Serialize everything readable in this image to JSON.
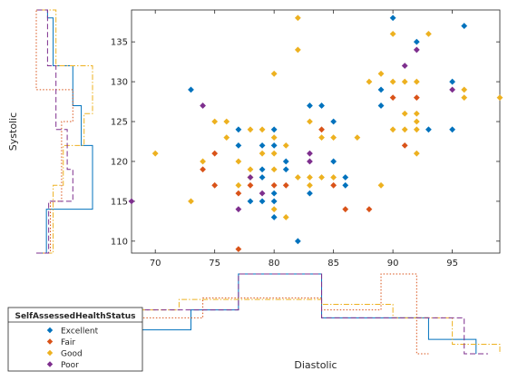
{
  "chart_data": {
    "type": "scatter",
    "title": "",
    "xlabel": "Diastolic",
    "ylabel": "Systolic",
    "xlim": [
      68,
      99
    ],
    "ylim": [
      108.5,
      139
    ],
    "x_ticks": [
      70,
      75,
      80,
      85,
      90,
      95
    ],
    "y_ticks": [
      110,
      115,
      120,
      125,
      130,
      135
    ],
    "legend_title": "SelfAssessedHealthStatus",
    "legend_position": "bottom-left",
    "series": [
      {
        "name": "Excellent",
        "color": "#0072BD",
        "marker": "diamond",
        "line_style": "solid",
        "points": [
          [
            73,
            129
          ],
          [
            77,
            124
          ],
          [
            77,
            122
          ],
          [
            78,
            115
          ],
          [
            79,
            119
          ],
          [
            79,
            118
          ],
          [
            79,
            122
          ],
          [
            79,
            115
          ],
          [
            80,
            124
          ],
          [
            80,
            122
          ],
          [
            80,
            116
          ],
          [
            80,
            115
          ],
          [
            80,
            113
          ],
          [
            81,
            120
          ],
          [
            81,
            119
          ],
          [
            82,
            110
          ],
          [
            83,
            116
          ],
          [
            83,
            127
          ],
          [
            84,
            127
          ],
          [
            85,
            125
          ],
          [
            85,
            120
          ],
          [
            86,
            118
          ],
          [
            86,
            117
          ],
          [
            89,
            129
          ],
          [
            89,
            127
          ],
          [
            90,
            138
          ],
          [
            92,
            135
          ],
          [
            93,
            124
          ],
          [
            95,
            130
          ],
          [
            95,
            124
          ],
          [
            96,
            137
          ]
        ]
      },
      {
        "name": "Fair",
        "color": "#D95319",
        "marker": "diamond",
        "line_style": "dotted",
        "points": [
          [
            74,
            119
          ],
          [
            75,
            121
          ],
          [
            75,
            117
          ],
          [
            77,
            116
          ],
          [
            77,
            109
          ],
          [
            78,
            117
          ],
          [
            80,
            117
          ],
          [
            81,
            117
          ],
          [
            84,
            124
          ],
          [
            85,
            117
          ],
          [
            86,
            114
          ],
          [
            88,
            114
          ],
          [
            90,
            128
          ],
          [
            91,
            122
          ],
          [
            92,
            128
          ]
        ]
      },
      {
        "name": "Good",
        "color": "#EDB120",
        "marker": "diamond",
        "line_style": "dashdot",
        "points": [
          [
            70,
            121
          ],
          [
            73,
            115
          ],
          [
            74,
            120
          ],
          [
            75,
            125
          ],
          [
            76,
            125
          ],
          [
            76,
            123
          ],
          [
            77,
            120
          ],
          [
            77,
            117
          ],
          [
            78,
            119
          ],
          [
            78,
            118
          ],
          [
            78,
            124
          ],
          [
            79,
            121
          ],
          [
            79,
            124
          ],
          [
            80,
            131
          ],
          [
            80,
            123
          ],
          [
            80,
            121
          ],
          [
            80,
            119
          ],
          [
            80,
            114
          ],
          [
            81,
            122
          ],
          [
            81,
            113
          ],
          [
            82,
            134
          ],
          [
            82,
            118
          ],
          [
            82,
            138
          ],
          [
            83,
            125
          ],
          [
            83,
            118
          ],
          [
            83,
            117
          ],
          [
            84,
            123
          ],
          [
            84,
            118
          ],
          [
            85,
            123
          ],
          [
            85,
            118
          ],
          [
            87,
            123
          ],
          [
            88,
            130
          ],
          [
            89,
            131
          ],
          [
            89,
            117
          ],
          [
            90,
            136
          ],
          [
            90,
            130
          ],
          [
            90,
            124
          ],
          [
            91,
            126
          ],
          [
            91,
            130
          ],
          [
            91,
            124
          ],
          [
            92,
            130
          ],
          [
            92,
            126
          ],
          [
            92,
            125
          ],
          [
            92,
            124
          ],
          [
            92,
            121
          ],
          [
            93,
            136
          ],
          [
            96,
            129
          ],
          [
            96,
            128
          ],
          [
            99,
            128
          ]
        ]
      },
      {
        "name": "Poor",
        "color": "#7E2F8E",
        "marker": "diamond",
        "line_style": "dashed",
        "points": [
          [
            68,
            115
          ],
          [
            74,
            127
          ],
          [
            77,
            114
          ],
          [
            78,
            118
          ],
          [
            79,
            116
          ],
          [
            83,
            121
          ],
          [
            83,
            120
          ],
          [
            91,
            132
          ],
          [
            92,
            134
          ],
          [
            95,
            129
          ]
        ]
      }
    ],
    "marginal_top_heights": {
      "Excellent": [
        [
          68,
          73,
          0.3
        ],
        [
          73,
          77,
          0.55
        ],
        [
          77,
          84,
          1.0
        ],
        [
          84,
          93,
          0.45
        ],
        [
          93,
          97,
          0.18
        ]
      ],
      "Fair": [
        [
          68,
          74,
          0.45
        ],
        [
          74,
          80,
          0.7
        ],
        [
          80,
          84,
          0.7
        ],
        [
          84,
          89,
          0.55
        ],
        [
          89,
          92,
          1.0
        ],
        [
          92,
          93,
          0
        ]
      ],
      "Good": [
        [
          68,
          72,
          0.55
        ],
        [
          72,
          78,
          0.68
        ],
        [
          78,
          84,
          0.68
        ],
        [
          84,
          90,
          0.62
        ],
        [
          90,
          95,
          0.45
        ],
        [
          95,
          99,
          0.12
        ]
      ],
      "Poor": [
        [
          68,
          72,
          0.55
        ],
        [
          72,
          77,
          0.55
        ],
        [
          77,
          84,
          1.0
        ],
        [
          84,
          89,
          0.45
        ],
        [
          89,
          96,
          0.45
        ],
        [
          96,
          98,
          0
        ]
      ]
    },
    "marginal_left_heights": {
      "Excellent": [
        [
          108.5,
          114,
          0.18
        ],
        [
          114,
          122,
          1.0
        ],
        [
          122,
          127,
          0.8
        ],
        [
          127,
          132,
          0.65
        ],
        [
          132,
          138,
          0.3
        ],
        [
          138,
          139,
          0.2
        ]
      ],
      "Fair": [
        [
          108.5,
          115,
          0.25
        ],
        [
          115,
          125,
          0.45
        ],
        [
          125,
          129,
          0.65
        ],
        [
          129,
          139,
          0
        ]
      ],
      "Good": [
        [
          108.5,
          117,
          0.3
        ],
        [
          117,
          122,
          0.48
        ],
        [
          122,
          126,
          0.85
        ],
        [
          126,
          132,
          1.0
        ],
        [
          132,
          139,
          0.35
        ]
      ],
      "Poor": [
        [
          108.5,
          115,
          0.22
        ],
        [
          115,
          119,
          0.65
        ],
        [
          119,
          124,
          0.55
        ],
        [
          124,
          132,
          0.35
        ],
        [
          132,
          139,
          0.2
        ]
      ]
    }
  }
}
